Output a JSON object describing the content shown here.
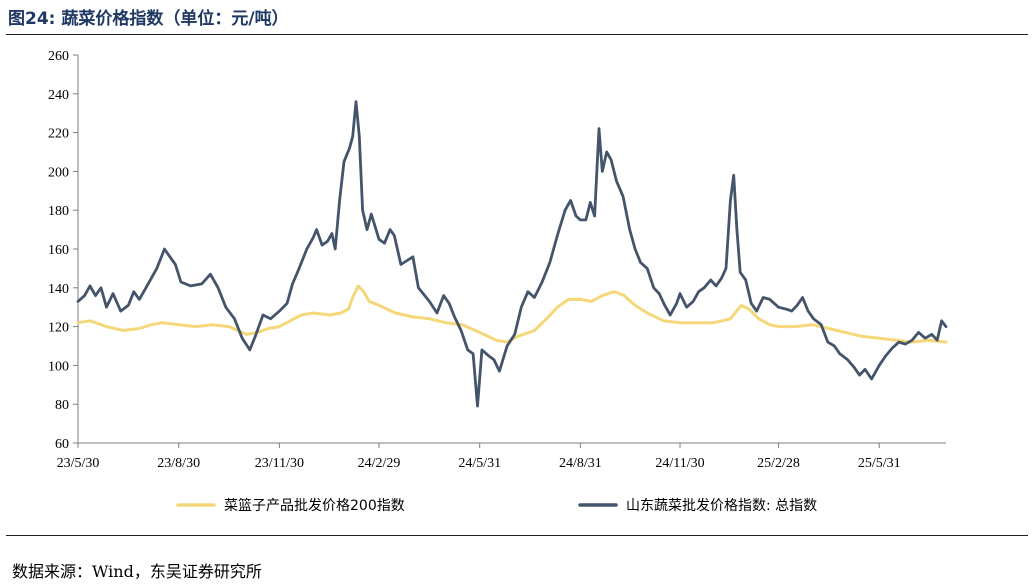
{
  "header": {
    "title": "图24:  蔬菜价格指数（单位：元/吨）"
  },
  "footer": {
    "source": "数据来源：Wind，东吴证券研究所"
  },
  "chart_data": {
    "type": "line",
    "title": "图24:  蔬菜价格指数（单位：元/吨）",
    "xlabel": "",
    "ylabel": "",
    "ylim": [
      60,
      260
    ],
    "yticks": [
      60,
      80,
      100,
      120,
      140,
      160,
      180,
      200,
      220,
      240,
      260
    ],
    "x_start": "23/5/30",
    "x_end": "25/7/31",
    "xticks": [
      "23/5/30",
      "23/8/30",
      "23/11/30",
      "24/2/29",
      "24/5/31",
      "24/8/31",
      "24/11/30",
      "25/2/28",
      "25/5/31"
    ],
    "legend_position": "bottom",
    "series": [
      {
        "name": "菜篮子产品批发价格200指数",
        "color": "#f5d77a",
        "points": [
          [
            "23/5/30",
            122
          ],
          [
            "23/6/10",
            123
          ],
          [
            "23/6/25",
            120
          ],
          [
            "23/7/10",
            118
          ],
          [
            "23/7/25",
            119
          ],
          [
            "23/8/5",
            121
          ],
          [
            "23/8/15",
            122
          ],
          [
            "23/8/30",
            121
          ],
          [
            "23/9/15",
            120
          ],
          [
            "23/9/30",
            121
          ],
          [
            "23/10/15",
            120
          ],
          [
            "23/10/31",
            116
          ],
          [
            "23/11/10",
            117
          ],
          [
            "23/11/20",
            119
          ],
          [
            "23/11/30",
            120
          ],
          [
            "23/12/10",
            123
          ],
          [
            "23/12/20",
            126
          ],
          [
            "23/12/31",
            127
          ],
          [
            "24/1/15",
            126
          ],
          [
            "24/1/25",
            127
          ],
          [
            "24/2/1",
            129
          ],
          [
            "24/2/5",
            135
          ],
          [
            "24/2/10",
            141
          ],
          [
            "24/2/15",
            138
          ],
          [
            "24/2/20",
            133
          ],
          [
            "24/2/29",
            131
          ],
          [
            "24/3/15",
            127
          ],
          [
            "24/3/31",
            125
          ],
          [
            "24/4/15",
            124
          ],
          [
            "24/4/30",
            122
          ],
          [
            "24/5/15",
            121
          ],
          [
            "24/5/31",
            117
          ],
          [
            "24/6/15",
            113
          ],
          [
            "24/6/25",
            112
          ],
          [
            "24/7/5",
            115
          ],
          [
            "24/7/20",
            118
          ],
          [
            "24/7/31",
            124
          ],
          [
            "24/8/10",
            130
          ],
          [
            "24/8/20",
            134
          ],
          [
            "24/8/31",
            134
          ],
          [
            "24/9/10",
            133
          ],
          [
            "24/9/20",
            136
          ],
          [
            "24/10/1",
            138
          ],
          [
            "24/10/10",
            136
          ],
          [
            "24/10/20",
            131
          ],
          [
            "24/10/31",
            127
          ],
          [
            "24/11/15",
            123
          ],
          [
            "24/11/30",
            122
          ],
          [
            "24/12/15",
            122
          ],
          [
            "24/12/31",
            122
          ],
          [
            "25/1/15",
            124
          ],
          [
            "25/1/25",
            131
          ],
          [
            "25/2/1",
            129
          ],
          [
            "25/2/10",
            124
          ],
          [
            "25/2/20",
            121
          ],
          [
            "25/2/28",
            120
          ],
          [
            "25/3/15",
            120
          ],
          [
            "25/3/31",
            121
          ],
          [
            "25/4/15",
            119
          ],
          [
            "25/4/30",
            117
          ],
          [
            "25/5/15",
            115
          ],
          [
            "25/5/31",
            114
          ],
          [
            "25/6/15",
            113
          ],
          [
            "25/6/30",
            112
          ],
          [
            "25/7/15",
            113
          ],
          [
            "25/7/31",
            112
          ]
        ]
      },
      {
        "name": "山东蔬菜批发价格指数: 总指数",
        "color": "#44546a",
        "points": [
          [
            "23/5/30",
            133
          ],
          [
            "23/6/5",
            136
          ],
          [
            "23/6/10",
            141
          ],
          [
            "23/6/15",
            136
          ],
          [
            "23/6/20",
            140
          ],
          [
            "23/6/25",
            130
          ],
          [
            "23/7/1",
            137
          ],
          [
            "23/7/8",
            128
          ],
          [
            "23/7/15",
            131
          ],
          [
            "23/7/20",
            138
          ],
          [
            "23/7/25",
            134
          ],
          [
            "23/8/1",
            141
          ],
          [
            "23/8/10",
            150
          ],
          [
            "23/8/17",
            160
          ],
          [
            "23/8/22",
            156
          ],
          [
            "23/8/27",
            152
          ],
          [
            "23/9/1",
            143
          ],
          [
            "23/9/10",
            141
          ],
          [
            "23/9/20",
            142
          ],
          [
            "23/9/28",
            147
          ],
          [
            "23/10/5",
            140
          ],
          [
            "23/10/12",
            130
          ],
          [
            "23/10/20",
            124
          ],
          [
            "23/10/27",
            114
          ],
          [
            "23/11/3",
            108
          ],
          [
            "23/11/8",
            115
          ],
          [
            "23/11/15",
            126
          ],
          [
            "23/11/22",
            124
          ],
          [
            "23/11/30",
            128
          ],
          [
            "23/12/7",
            132
          ],
          [
            "23/12/12",
            142
          ],
          [
            "23/12/18",
            150
          ],
          [
            "23/12/25",
            160
          ],
          [
            "23/12/31",
            166
          ],
          [
            "24/1/3",
            170
          ],
          [
            "24/1/8",
            162
          ],
          [
            "24/1/13",
            164
          ],
          [
            "24/1/17",
            168
          ],
          [
            "24/1/20",
            160
          ],
          [
            "24/1/24",
            185
          ],
          [
            "24/1/28",
            205
          ],
          [
            "24/2/2",
            212
          ],
          [
            "24/2/5",
            218
          ],
          [
            "24/2/8",
            236
          ],
          [
            "24/2/11",
            218
          ],
          [
            "24/2/14",
            180
          ],
          [
            "24/2/18",
            170
          ],
          [
            "24/2/22",
            178
          ],
          [
            "24/2/29",
            165
          ],
          [
            "24/3/5",
            163
          ],
          [
            "24/3/10",
            170
          ],
          [
            "24/3/14",
            167
          ],
          [
            "24/3/20",
            152
          ],
          [
            "24/3/31",
            156
          ],
          [
            "24/4/5",
            140
          ],
          [
            "24/4/15",
            133
          ],
          [
            "24/4/22",
            127
          ],
          [
            "24/4/28",
            136
          ],
          [
            "24/5/3",
            132
          ],
          [
            "24/5/8",
            125
          ],
          [
            "24/5/14",
            118
          ],
          [
            "24/5/20",
            108
          ],
          [
            "24/5/25",
            106
          ],
          [
            "24/5/29",
            79
          ],
          [
            "24/6/2",
            108
          ],
          [
            "24/6/8",
            105
          ],
          [
            "24/6/13",
            103
          ],
          [
            "24/6/18",
            97
          ],
          [
            "24/6/25",
            110
          ],
          [
            "24/7/2",
            116
          ],
          [
            "24/7/8",
            130
          ],
          [
            "24/7/14",
            138
          ],
          [
            "24/7/20",
            135
          ],
          [
            "24/7/27",
            143
          ],
          [
            "24/8/3",
            153
          ],
          [
            "24/8/10",
            167
          ],
          [
            "24/8/17",
            180
          ],
          [
            "24/8/22",
            185
          ],
          [
            "24/8/27",
            177
          ],
          [
            "24/8/31",
            175
          ],
          [
            "24/9/5",
            175
          ],
          [
            "24/9/9",
            184
          ],
          [
            "24/9/13",
            177
          ],
          [
            "24/9/17",
            222
          ],
          [
            "24/9/20",
            200
          ],
          [
            "24/9/24",
            210
          ],
          [
            "24/9/28",
            206
          ],
          [
            "24/10/3",
            195
          ],
          [
            "24/10/9",
            187
          ],
          [
            "24/10/15",
            170
          ],
          [
            "24/10/20",
            160
          ],
          [
            "24/10/25",
            153
          ],
          [
            "24/10/31",
            150
          ],
          [
            "24/11/6",
            140
          ],
          [
            "24/11/11",
            137
          ],
          [
            "24/11/16",
            131
          ],
          [
            "24/11/21",
            126
          ],
          [
            "24/11/27",
            132
          ],
          [
            "24/11/30",
            137
          ],
          [
            "24/12/6",
            130
          ],
          [
            "24/12/12",
            133
          ],
          [
            "24/12/17",
            138
          ],
          [
            "24/12/22",
            140
          ],
          [
            "24/12/28",
            144
          ],
          [
            "25/1/2",
            141
          ],
          [
            "25/1/7",
            145
          ],
          [
            "25/1/11",
            150
          ],
          [
            "25/1/15",
            185
          ],
          [
            "25/1/18",
            198
          ],
          [
            "25/1/21",
            170
          ],
          [
            "25/1/24",
            148
          ],
          [
            "25/1/29",
            144
          ],
          [
            "25/2/3",
            132
          ],
          [
            "25/2/8",
            128
          ],
          [
            "25/2/14",
            135
          ],
          [
            "25/2/20",
            134
          ],
          [
            "25/2/28",
            130
          ],
          [
            "25/3/7",
            129
          ],
          [
            "25/3/12",
            128
          ],
          [
            "25/3/17",
            131
          ],
          [
            "25/3/22",
            135
          ],
          [
            "25/3/27",
            128
          ],
          [
            "25/4/1",
            124
          ],
          [
            "25/4/8",
            121
          ],
          [
            "25/4/14",
            112
          ],
          [
            "25/4/20",
            110
          ],
          [
            "25/4/25",
            106
          ],
          [
            "25/5/2",
            103
          ],
          [
            "25/5/8",
            99
          ],
          [
            "25/5/13",
            95
          ],
          [
            "25/5/18",
            98
          ],
          [
            "25/5/24",
            93
          ],
          [
            "25/5/31",
            100
          ],
          [
            "25/6/6",
            105
          ],
          [
            "25/6/12",
            109
          ],
          [
            "25/6/18",
            112
          ],
          [
            "25/6/24",
            111
          ],
          [
            "25/6/30",
            113
          ],
          [
            "25/7/6",
            117
          ],
          [
            "25/7/12",
            114
          ],
          [
            "25/7/18",
            116
          ],
          [
            "25/7/23",
            113
          ],
          [
            "25/7/27",
            123
          ],
          [
            "25/7/31",
            120
          ]
        ]
      }
    ]
  }
}
